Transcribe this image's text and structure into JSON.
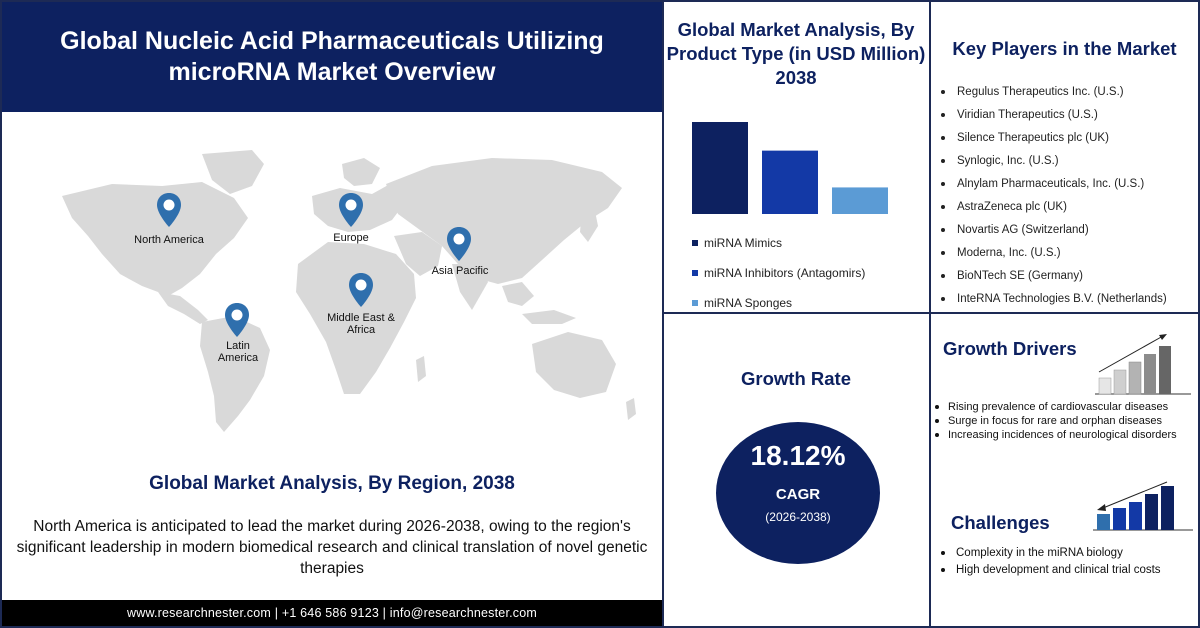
{
  "header": {
    "title": "Global Nucleic Acid Pharmaceuticals Utilizing microRNA Market Overview"
  },
  "map": {
    "regions": [
      {
        "label": "North America"
      },
      {
        "label": "Europe"
      },
      {
        "label": "Asia Pacific"
      },
      {
        "label": "Middle East & Africa"
      },
      {
        "label": "Latin America"
      }
    ]
  },
  "region_section": {
    "title": "Global Market Analysis, By Region, 2038",
    "description": "North America is anticipated to lead the market during 2026-2038, owing to the region's significant leadership in modern biomedical research and clinical translation of novel genetic therapies"
  },
  "footer": {
    "text": "www.researchnester.com | +1 646 586 9123 | info@researchnester.com"
  },
  "product_section": {
    "title": "Global Market Analysis, By Product Type (in USD Million) 2038"
  },
  "chart_data": {
    "type": "bar",
    "title": "Global Market Analysis, By Product Type (in USD Million) 2038",
    "categories": [
      "miRNA Mimics",
      "miRNA Inhibitors (Antagomirs)",
      "miRNA Sponges"
    ],
    "values": [
      90,
      62,
      26
    ],
    "colors": [
      "#0d2160",
      "#1339a6",
      "#5b9bd5"
    ],
    "ylim": [
      0,
      90
    ],
    "grid": false,
    "legend": "bottom"
  },
  "key_players": {
    "title": "Key Players in the Market",
    "items": [
      "Regulus Therapeutics Inc. (U.S.)",
      "Viridian Therapeutics (U.S.)",
      "Silence Therapeutics plc (UK)",
      "Synlogic, Inc. (U.S.)",
      "Alnylam Pharmaceuticals, Inc. (U.S.)",
      "AstraZeneca plc (UK)",
      "Novartis AG (Switzerland)",
      "Moderna, Inc. (U.S.)",
      "BioNTech SE (Germany)",
      "InteRNA Technologies B.V. (Netherlands)"
    ]
  },
  "growth_rate": {
    "title": "Growth Rate",
    "value": "18.12%",
    "label": "CAGR",
    "period": "(2026-2038)"
  },
  "growth_drivers": {
    "title": "Growth Drivers",
    "items": [
      "Rising prevalence of cardiovascular diseases",
      "Surge in focus for rare and orphan diseases",
      "Increasing incidences of neurological disorders"
    ]
  },
  "challenges": {
    "title": "Challenges",
    "items": [
      "Complexity in the miRNA biology",
      "High development and clinical trial costs"
    ]
  },
  "colors": {
    "navy": "#0d2160",
    "blue": "#1339a6",
    "light_blue": "#5b9bd5",
    "pin": "#2f6fad",
    "land": "#d9d9d9"
  },
  "icons": [
    "location-pin-icon",
    "rising-bars-icon",
    "falling-bars-icon"
  ]
}
